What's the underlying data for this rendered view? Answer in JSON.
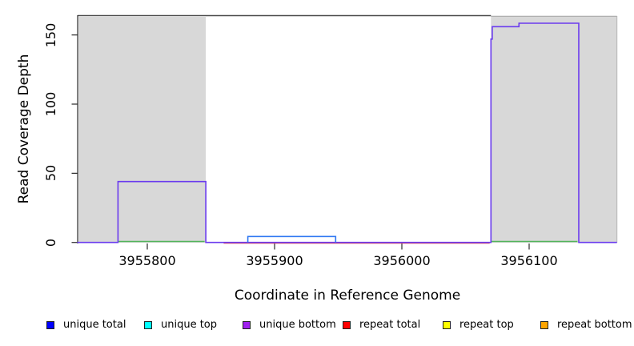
{
  "y_axis": {
    "title": "Read Coverage Depth",
    "tick_labels": [
      "0",
      "50",
      "100",
      "150"
    ]
  },
  "x_axis": {
    "title": "Coordinate in Reference Genome",
    "tick_labels": [
      "3955800",
      "3955900",
      "3956000",
      "3956100"
    ]
  },
  "legend": {
    "items": [
      {
        "label": "unique total",
        "color": "#0000ff"
      },
      {
        "label": "unique top",
        "color": "#00ffff"
      },
      {
        "label": "unique bottom",
        "color": "#a020f0"
      },
      {
        "label": "repeat total",
        "color": "#ff0000"
      },
      {
        "label": "repeat top",
        "color": "#ffff00"
      },
      {
        "label": "repeat bottom",
        "color": "#ffa500"
      }
    ]
  },
  "chart_data": {
    "type": "line",
    "subtype": "step-coverage",
    "title": "",
    "xlabel": "Coordinate in Reference Genome",
    "ylabel": "Read Coverage Depth",
    "xlim": [
      3955745,
      3956169
    ],
    "ylim": [
      0,
      164
    ],
    "xticks": [
      3955800,
      3955900,
      3956000,
      3956100
    ],
    "yticks": [
      0,
      50,
      100,
      150
    ],
    "grid": false,
    "legend_position": "bottom",
    "shaded_regions": [
      {
        "x0": 3955746,
        "x1": 3955846,
        "color": "#d8d8d8"
      },
      {
        "x0": 3956070,
        "x1": 3956169,
        "color": "#d8d8d8"
      }
    ],
    "series": [
      {
        "name": "repeat total",
        "rendered_color": "#e84a56",
        "points": [
          [
            3955860,
            0
          ],
          [
            3956069,
            0
          ]
        ]
      },
      {
        "name": "unique top",
        "rendered_color": "#52b45b",
        "points": [
          [
            3955777,
            0
          ],
          [
            3955845,
            0
          ]
        ]
      },
      {
        "name": "unique top (right segment)",
        "rendered_color": "#52b45b",
        "points": [
          [
            3956070,
            0
          ],
          [
            3956138,
            0
          ]
        ]
      },
      {
        "name": "unique bottom",
        "rendered_color": "#6a3bee",
        "points": [
          [
            3955745,
            0
          ],
          [
            3955777,
            0
          ],
          [
            3955777,
            44
          ],
          [
            3955846,
            44
          ],
          [
            3955846,
            0
          ],
          [
            3956070,
            0
          ],
          [
            3956070,
            147
          ],
          [
            3956071,
            147
          ],
          [
            3956071,
            156
          ],
          [
            3956092,
            156
          ],
          [
            3956092,
            158.5
          ],
          [
            3956139,
            158.5
          ],
          [
            3956139,
            0
          ],
          [
            3956169,
            0
          ]
        ]
      },
      {
        "name": "unique total",
        "rendered_color": "#2e77f2",
        "points": [
          [
            3955879,
            0
          ],
          [
            3955879,
            4.3
          ],
          [
            3955948,
            4.3
          ],
          [
            3955948,
            0
          ]
        ]
      }
    ]
  }
}
